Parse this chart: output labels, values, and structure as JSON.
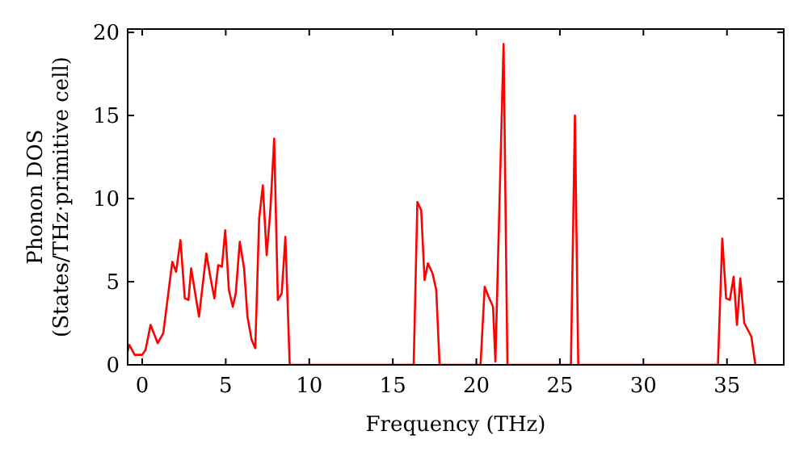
{
  "chart_data": {
    "type": "line",
    "xlabel": "Frequency (THz)",
    "ylabel": "Phonon DOS\n(States/THz·primitive cell)",
    "xlim": [
      -0.87,
      38.4
    ],
    "ylim": [
      0,
      20.2
    ],
    "xticks": [
      0,
      5,
      10,
      15,
      20,
      25,
      30,
      35
    ],
    "yticks": [
      0,
      5,
      10,
      15,
      20
    ],
    "grid": false,
    "line_style": "solid",
    "series": [
      {
        "color": "#ff0000",
        "x": [
          -0.87,
          -0.77,
          -0.45,
          0,
          0.2,
          0.5,
          0.93,
          1.26,
          1.8,
          2.03,
          2.29,
          2.55,
          2.77,
          2.93,
          3.4,
          3.84,
          4.06,
          4.32,
          4.55,
          4.77,
          4.97,
          5.19,
          5.42,
          5.6,
          5.84,
          6.1,
          6.3,
          6.55,
          6.77,
          7.0,
          7.22,
          7.45,
          7.67,
          7.9,
          8.12,
          8.35,
          8.57,
          8.83,
          16.25,
          16.47,
          16.7,
          16.9,
          17.1,
          17.38,
          17.6,
          17.8,
          20.25,
          20.5,
          20.73,
          21.0,
          21.14,
          21.63,
          21.86,
          25.66,
          25.9,
          26.1,
          34.46,
          34.72,
          34.95,
          35.17,
          35.4,
          35.6,
          35.8,
          36.04,
          36.46,
          36.7
        ],
        "values": [
          0.8,
          1.2,
          0.6,
          0.6,
          0.9,
          2.4,
          1.3,
          1.9,
          6.2,
          5.6,
          7.5,
          4.0,
          3.9,
          5.8,
          2.9,
          6.7,
          5.4,
          4.0,
          6.0,
          5.9,
          8.1,
          4.5,
          3.5,
          4.3,
          7.4,
          5.8,
          2.9,
          1.5,
          1.0,
          8.8,
          10.8,
          6.6,
          9.3,
          13.6,
          3.9,
          4.3,
          7.7,
          0,
          0,
          9.8,
          9.3,
          5.1,
          6.1,
          5.5,
          4.5,
          0,
          0,
          4.7,
          4.1,
          3.5,
          0.2,
          19.3,
          0,
          0,
          15.0,
          0,
          0,
          7.6,
          4.0,
          3.9,
          5.3,
          2.4,
          5.2,
          2.5,
          1.7,
          0
        ]
      }
    ]
  }
}
